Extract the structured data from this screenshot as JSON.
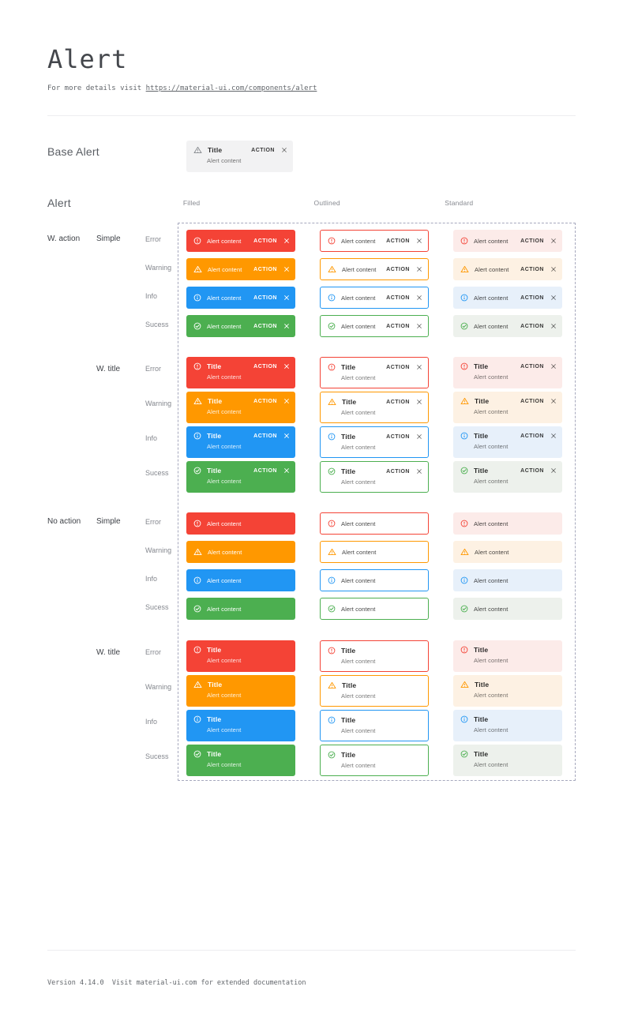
{
  "page": {
    "title": "Alert",
    "subtitle_prefix": "For more details visit ",
    "subtitle_link": "https://material-ui.com/components/alert",
    "footer": "Version 4.14.0  Visit material-ui.com for extended documentation"
  },
  "base_alert": {
    "section_label": "Base Alert",
    "icon": "warning-icon",
    "title": "Title",
    "content": "Alert content",
    "action_label": "ACTION",
    "close_icon": "close-icon"
  },
  "alert_grid": {
    "section_label": "Alert",
    "columns": [
      "Filled",
      "Outlined",
      "Standard"
    ],
    "variants": [
      "filled",
      "outlined",
      "standard"
    ],
    "severities": [
      {
        "key": "error",
        "label": "Error",
        "icon": "error-icon",
        "color": "#f44336",
        "standard_bg": "#fcebe9"
      },
      {
        "key": "warning",
        "label": "Warning",
        "icon": "warning-icon",
        "color": "#ff9800",
        "standard_bg": "#fdf1e3"
      },
      {
        "key": "info",
        "label": "Info",
        "icon": "info-icon",
        "color": "#2196f3",
        "standard_bg": "#e7f0fa"
      },
      {
        "key": "success",
        "label": "Sucess",
        "icon": "success-icon",
        "color": "#4caf50",
        "standard_bg": "#edf1ec"
      }
    ],
    "groups": [
      {
        "group_label": "W. action",
        "style_label": "Simple",
        "with_title": false,
        "with_action": true
      },
      {
        "group_label": "",
        "style_label": "W. title",
        "with_title": true,
        "with_action": true
      },
      {
        "group_label": "No action",
        "style_label": "Simple",
        "with_title": false,
        "with_action": false
      },
      {
        "group_label": "",
        "style_label": "W. title",
        "with_title": true,
        "with_action": false
      }
    ],
    "alert_text": {
      "title": "Title",
      "content": "Alert content",
      "action_label": "ACTION"
    }
  },
  "theme": {
    "filled_text": "#ffffff",
    "filled_content": "rgba(255,255,255,0.85)",
    "dark_title": "rgba(0,0,0,0.84)",
    "dark_content": "rgba(0,0,0,0.55)",
    "dark_simple_content": "rgba(0,0,0,0.74)",
    "dark_action": "rgba(0,0,0,0.78)",
    "dark_close": "rgba(0,0,0,0.52)",
    "dashed_border": "#a6a8bd"
  }
}
